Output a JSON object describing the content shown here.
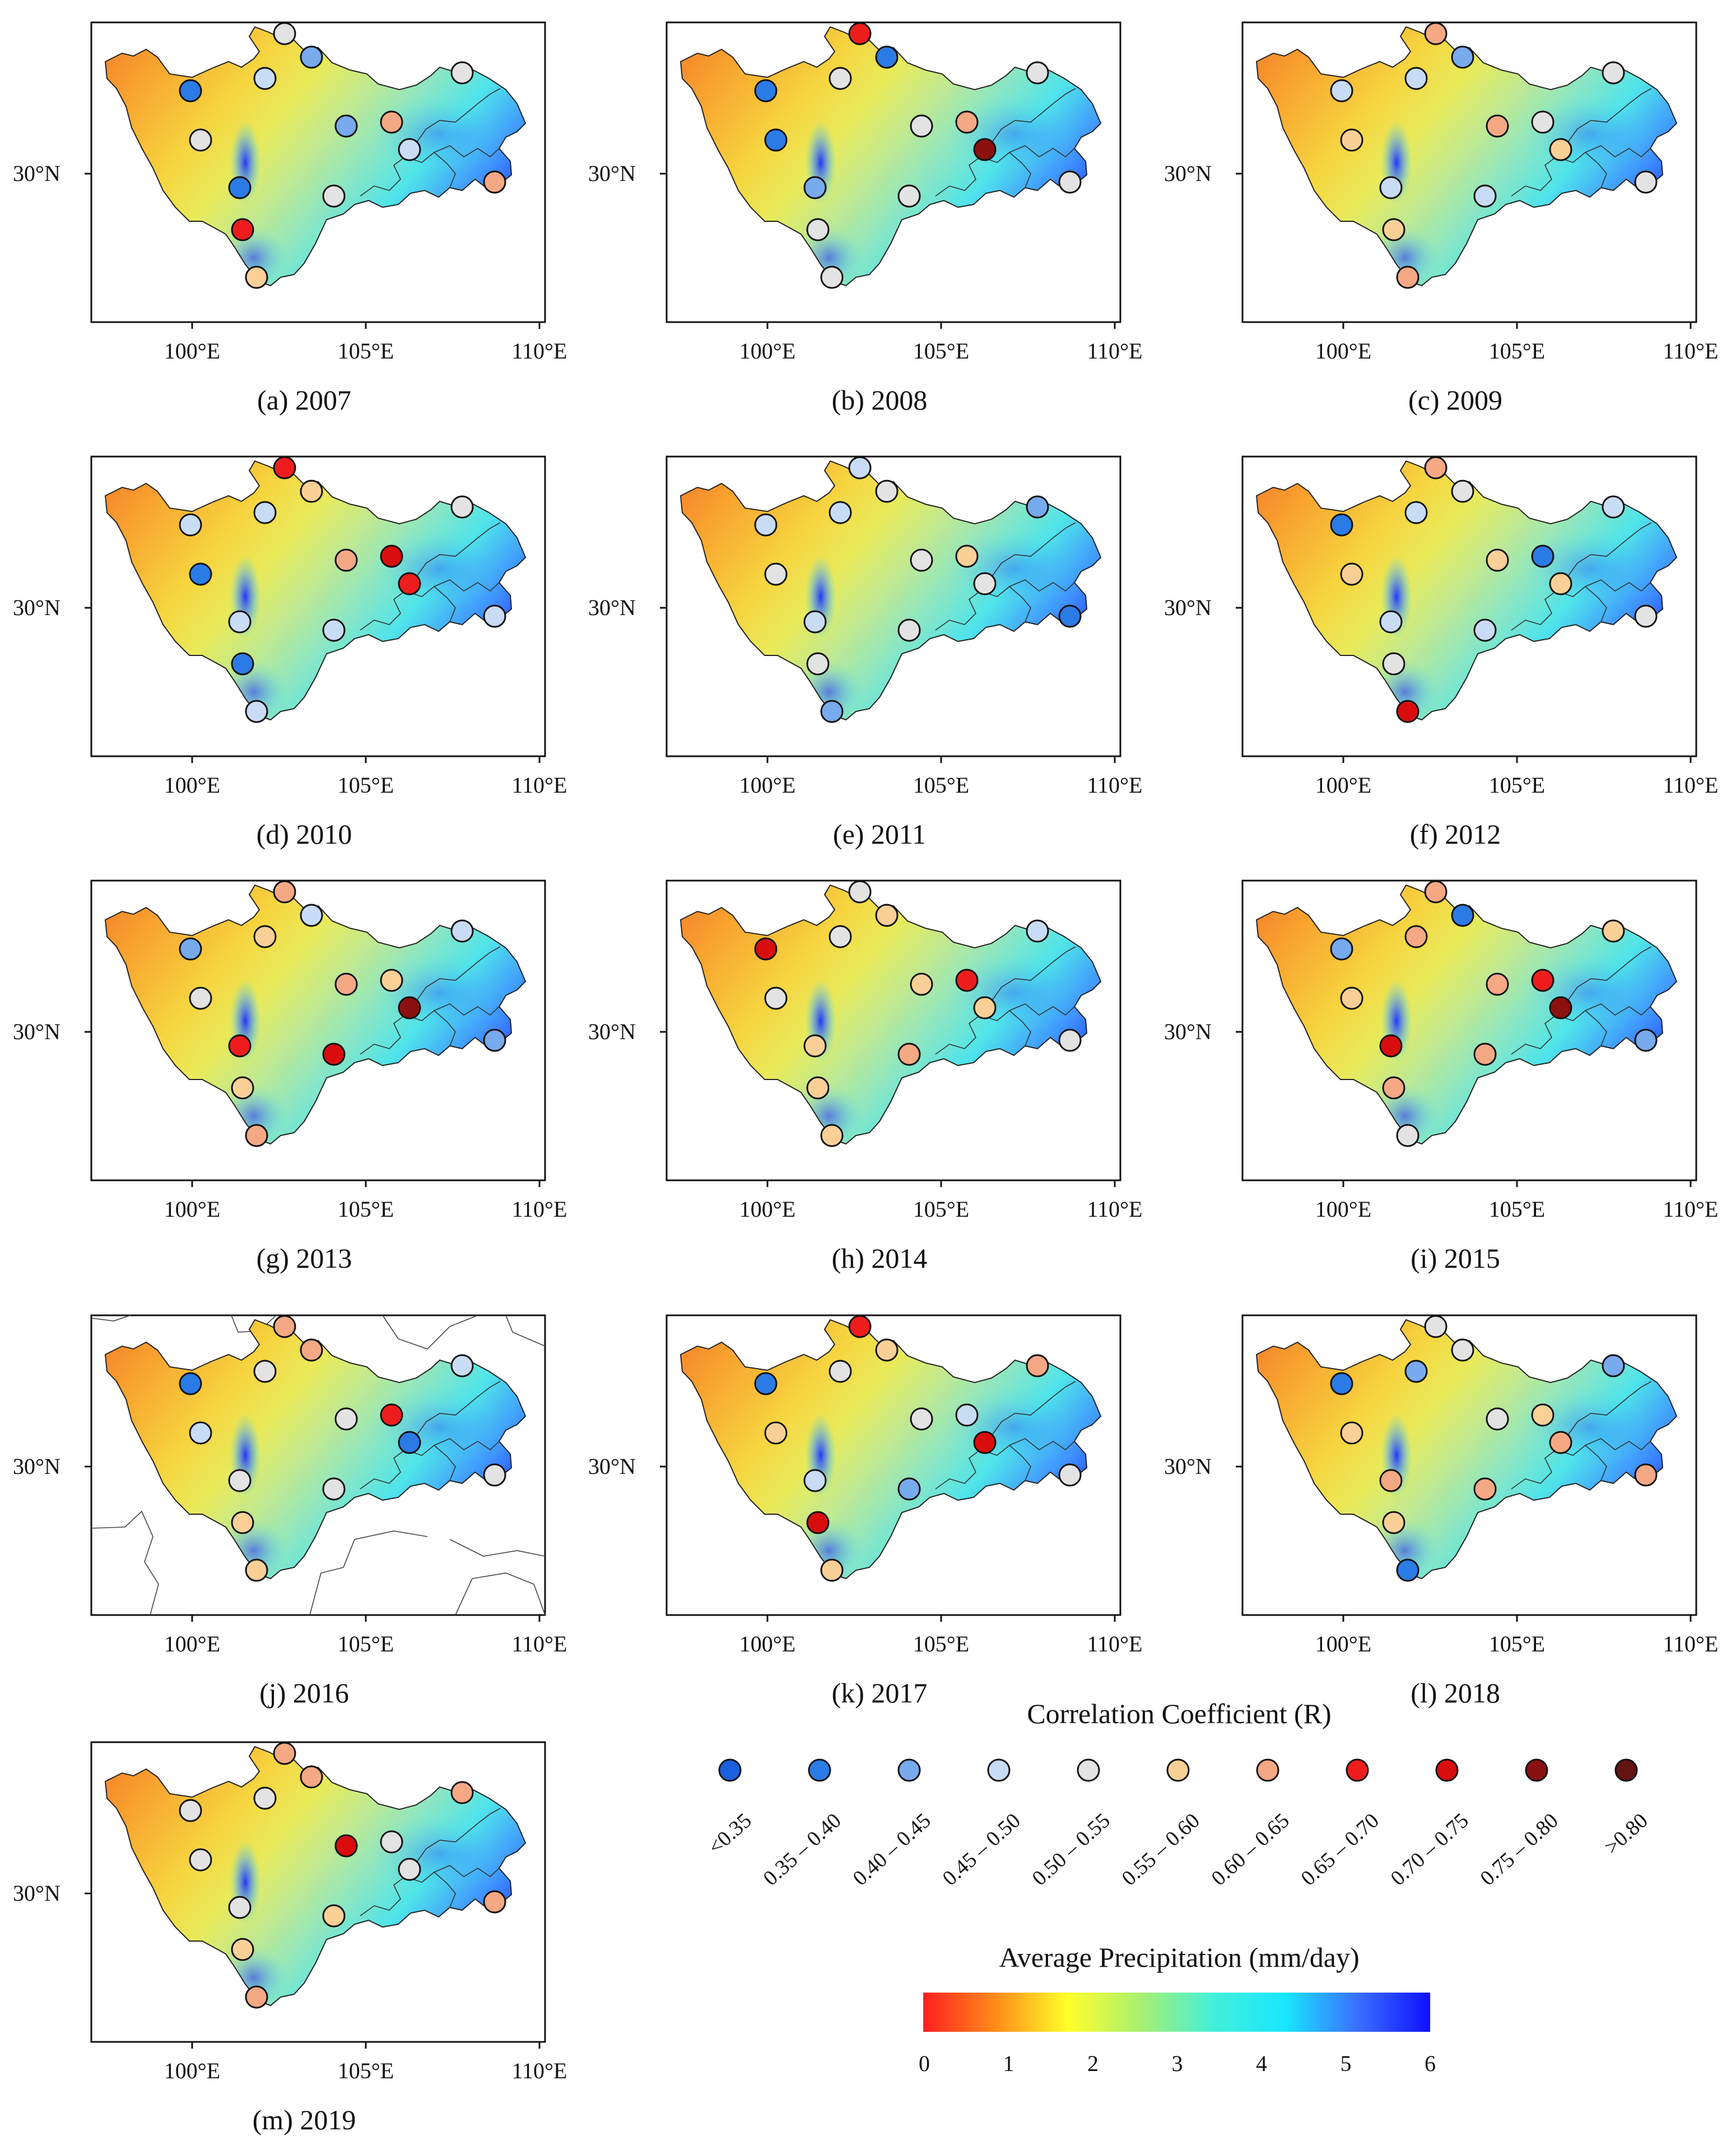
{
  "colors": {
    "map_stops": [
      "#f47328",
      "#f8a830",
      "#f6d540",
      "#e9ea5a",
      "#bfe992",
      "#8ae6c4",
      "#4fe4ea",
      "#3f92ff",
      "#1d2cff"
    ],
    "r_classes": [
      "#1a5fdd",
      "#2b7be6",
      "#78aaee",
      "#c9dcf6",
      "#e3e3e3",
      "#fbd097",
      "#f5a884",
      "#ee1d1d",
      "#d90d0d",
      "#8b1010",
      "#651212"
    ],
    "colorbar": [
      "#ff1f1f",
      "#ff8c1a",
      "#ffff2a",
      "#a8f070",
      "#44f0d8",
      "#19e6ff",
      "#3a6fff",
      "#1010ff"
    ]
  },
  "axes": {
    "y_label": "30°N",
    "x_labels": [
      "100°E",
      "105°E",
      "110°E"
    ]
  },
  "panels": [
    {
      "caption": "(a) 2007",
      "stations": [
        4,
        2,
        1,
        3,
        2,
        6,
        3,
        6,
        1,
        7,
        5,
        4,
        4,
        4
      ]
    },
    {
      "caption": "(b) 2008",
      "stations": [
        7,
        1,
        1,
        4,
        4,
        6,
        9,
        4,
        2,
        4,
        4,
        1,
        4,
        4
      ]
    },
    {
      "caption": "(c) 2009",
      "stations": [
        6,
        2,
        3,
        3,
        6,
        4,
        5,
        4,
        3,
        5,
        6,
        5,
        3,
        4
      ]
    },
    {
      "caption": "(d) 2010",
      "stations": [
        7,
        5,
        3,
        3,
        6,
        8,
        7,
        3,
        3,
        1,
        3,
        1,
        3,
        4
      ]
    },
    {
      "caption": "(e) 2011",
      "stations": [
        3,
        4,
        3,
        3,
        4,
        5,
        4,
        1,
        3,
        4,
        2,
        4,
        4,
        2
      ]
    },
    {
      "caption": "(f) 2012",
      "stations": [
        6,
        4,
        1,
        3,
        5,
        1,
        5,
        4,
        3,
        4,
        8,
        5,
        3,
        3
      ]
    },
    {
      "caption": "(g) 2013",
      "stations": [
        6,
        3,
        2,
        5,
        6,
        5,
        9,
        2,
        7,
        5,
        6,
        4,
        8,
        3
      ]
    },
    {
      "caption": "(h) 2014",
      "stations": [
        4,
        5,
        8,
        4,
        5,
        7,
        5,
        4,
        5,
        5,
        5,
        4,
        6,
        3
      ]
    },
    {
      "caption": "(i) 2015",
      "stations": [
        6,
        1,
        2,
        6,
        6,
        7,
        9,
        2,
        8,
        6,
        4,
        5,
        6,
        5
      ]
    },
    {
      "caption": "(j) 2016",
      "stations": [
        6,
        6,
        1,
        4,
        4,
        7,
        1,
        4,
        4,
        5,
        5,
        3,
        4,
        3
      ]
    },
    {
      "caption": "(k) 2017",
      "stations": [
        7,
        5,
        1,
        4,
        4,
        3,
        8,
        4,
        3,
        8,
        5,
        5,
        2,
        6
      ]
    },
    {
      "caption": "(l) 2018",
      "stations": [
        4,
        4,
        1,
        2,
        4,
        5,
        6,
        6,
        6,
        5,
        1,
        5,
        6,
        2
      ]
    },
    {
      "caption": "(m) 2019",
      "stations": [
        6,
        6,
        4,
        4,
        8,
        4,
        4,
        6,
        4,
        5,
        6,
        4,
        5,
        6
      ]
    }
  ],
  "legend": {
    "r_title": "Correlation Coefficient (R)",
    "r_labels": [
      "<0.35",
      "0.35 – 0.40",
      "0.40 – 0.45",
      "0.45 – 0.50",
      "0.50 – 0.55",
      "0.55 – 0.60",
      "0.60 – 0.65",
      "0.65 – 0.70",
      "0.70 – 0.75",
      "0.75 – 0.80",
      ">0.80"
    ],
    "precip_title": "Average Precipitation (mm/day)",
    "precip_ticks": [
      "0",
      "1",
      "2",
      "3",
      "4",
      "5",
      "6"
    ]
  }
}
